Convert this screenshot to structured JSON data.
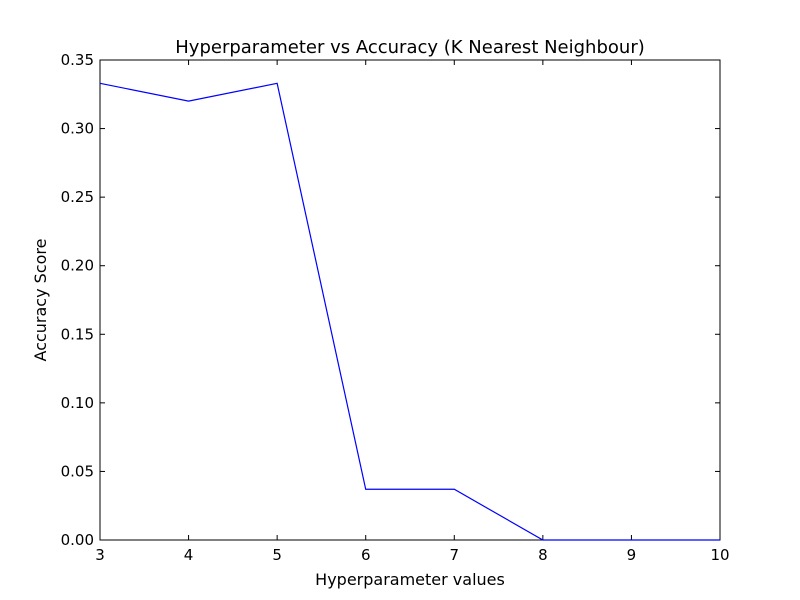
{
  "chart_data": {
    "type": "line",
    "title": "Hyperparameter vs Accuracy (K Nearest Neighbour)",
    "xlabel": "Hyperparameter values",
    "ylabel": "Accuracy Score",
    "xlim": [
      3,
      10
    ],
    "ylim": [
      0,
      0.35
    ],
    "xticks": [
      3,
      4,
      5,
      6,
      7,
      8,
      9,
      10
    ],
    "xtick_labels": [
      "3",
      "4",
      "5",
      "6",
      "7",
      "8",
      "9",
      "10"
    ],
    "yticks": [
      0,
      0.05,
      0.1,
      0.15,
      0.2,
      0.25,
      0.3,
      0.35
    ],
    "ytick_labels": [
      "0.00",
      "0.05",
      "0.10",
      "0.15",
      "0.20",
      "0.25",
      "0.30",
      "0.35"
    ],
    "grid": false,
    "series": [
      {
        "color": "#0000ff",
        "x": [
          3,
          4,
          5,
          6,
          7,
          8,
          9,
          10
        ],
        "y": [
          0.333,
          0.32,
          0.333,
          0.037,
          0.037,
          0.0,
          0.0,
          0.0
        ]
      }
    ]
  }
}
